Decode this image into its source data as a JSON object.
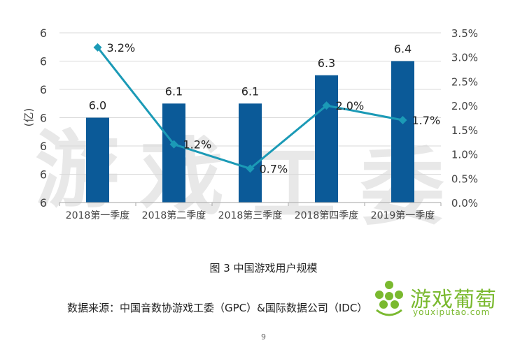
{
  "chart_data": {
    "type": "bar",
    "categories": [
      "2018第一季度",
      "2018第二季度",
      "2018第三季度",
      "2018第四季度",
      "2019第一季度"
    ],
    "series": [
      {
        "values": [
          6.0,
          6.1,
          6.1,
          6.3,
          6.4
        ],
        "labels": [
          "6.0",
          "6.1",
          "6.1",
          "6.3",
          "6.4"
        ],
        "color": "#0b5a98",
        "type": "bar",
        "axis": "left"
      },
      {
        "values": [
          3.2,
          1.2,
          0.7,
          2.0,
          1.7
        ],
        "labels": [
          "3.2%",
          "1.2%",
          "0.7%",
          "2.0%",
          "1.7%"
        ],
        "color": "#1b9ab6",
        "type": "line",
        "axis": "right"
      }
    ],
    "ylabel": "(亿)",
    "left_ticks": [
      "6",
      "6",
      "6",
      "6",
      "6",
      "6",
      "6"
    ],
    "right_ticks": [
      "0.0%",
      "0.5%",
      "1.0%",
      "1.5%",
      "2.0%",
      "2.5%",
      "3.0%",
      "3.5%"
    ],
    "ylim_left": [
      5.4,
      6.6
    ],
    "ylim_right": [
      0,
      3.5
    ],
    "grid": "horizontal",
    "watermark": "游戏工委"
  },
  "caption": "图 3  中国游戏用户规模",
  "source": "数据来源：中国音数协游戏工委（GPC）&国际数据公司（IDC）",
  "page_number": "9",
  "logo": {
    "cn": "游戏葡萄",
    "en": "youxiputao.com"
  },
  "colors": {
    "bar": "#0b5a98",
    "line": "#1b9ab6",
    "grid": "#d9d9d9",
    "logo": "#7ab92f"
  }
}
